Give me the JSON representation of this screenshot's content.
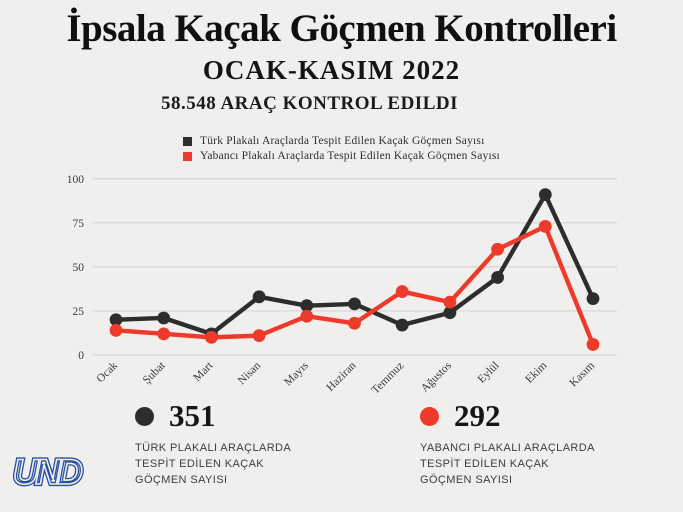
{
  "header": {
    "title": "İpsala Kaçak Göçmen Kontrolleri",
    "subtitle": "OCAK-KASIM 2022",
    "vehicles_line": "58.548 ARAÇ KONTROL EDILDI"
  },
  "legend": {
    "items": [
      {
        "label": "Türk Plakalı Araçlarda Tespit Edilen Kaçak Göçmen Sayısı",
        "color": "#2e2d2d"
      },
      {
        "label": "Yabancı Plakalı Araçlarda Tespit Edilen Kaçak Göçmen Sayısı",
        "color": "#ee3a2b"
      }
    ]
  },
  "chart_data": {
    "type": "line",
    "categories": [
      "Ocak",
      "Şubat",
      "Mart",
      "Nisan",
      "Mayıs",
      "Haziran",
      "Temmuz",
      "Ağustos",
      "Eylül",
      "Ekim",
      "Kasım"
    ],
    "series": [
      {
        "name": "Türk Plakalı Araçlarda Tespit Edilen Kaçak Göçmen Sayısı",
        "color": "#2e2d2d",
        "values": [
          20,
          21,
          12,
          33,
          28,
          29,
          17,
          24,
          44,
          91,
          32
        ]
      },
      {
        "name": "Yabancı Plakalı Araçlarda Tespit Edilen Kaçak Göçmen Sayısı",
        "color": "#ee3a2b",
        "values": [
          14,
          12,
          10,
          11,
          22,
          18,
          36,
          30,
          60,
          73,
          6
        ]
      }
    ],
    "yticks": [
      0,
      25,
      50,
      75,
      100
    ],
    "ylim": [
      0,
      100
    ],
    "grid": true,
    "legend_position": "top",
    "title": "İpsala Kaçak Göçmen Kontrolleri OCAK-KASIM 2022",
    "xlabel": "",
    "ylabel": ""
  },
  "stats": [
    {
      "value": "351",
      "color": "#2e2d2d",
      "desc_lines": [
        "TÜRK PLAKALI ARAÇLARDA",
        "TESPİT EDİLEN KAÇAK",
        "GÖÇMEN SAYISI"
      ]
    },
    {
      "value": "292",
      "color": "#ee3a2b",
      "desc_lines": [
        "YABANCI PLAKALI ARAÇLARDA",
        "TESPİT EDİLEN KAÇAK",
        "GÖÇMEN SAYISI"
      ]
    }
  ],
  "logo": {
    "text": "UND",
    "color": "#274f9b"
  },
  "colors": {
    "background": "#f0efee",
    "grid": "#d8d6d4",
    "axis_text": "#3b3b3b"
  }
}
